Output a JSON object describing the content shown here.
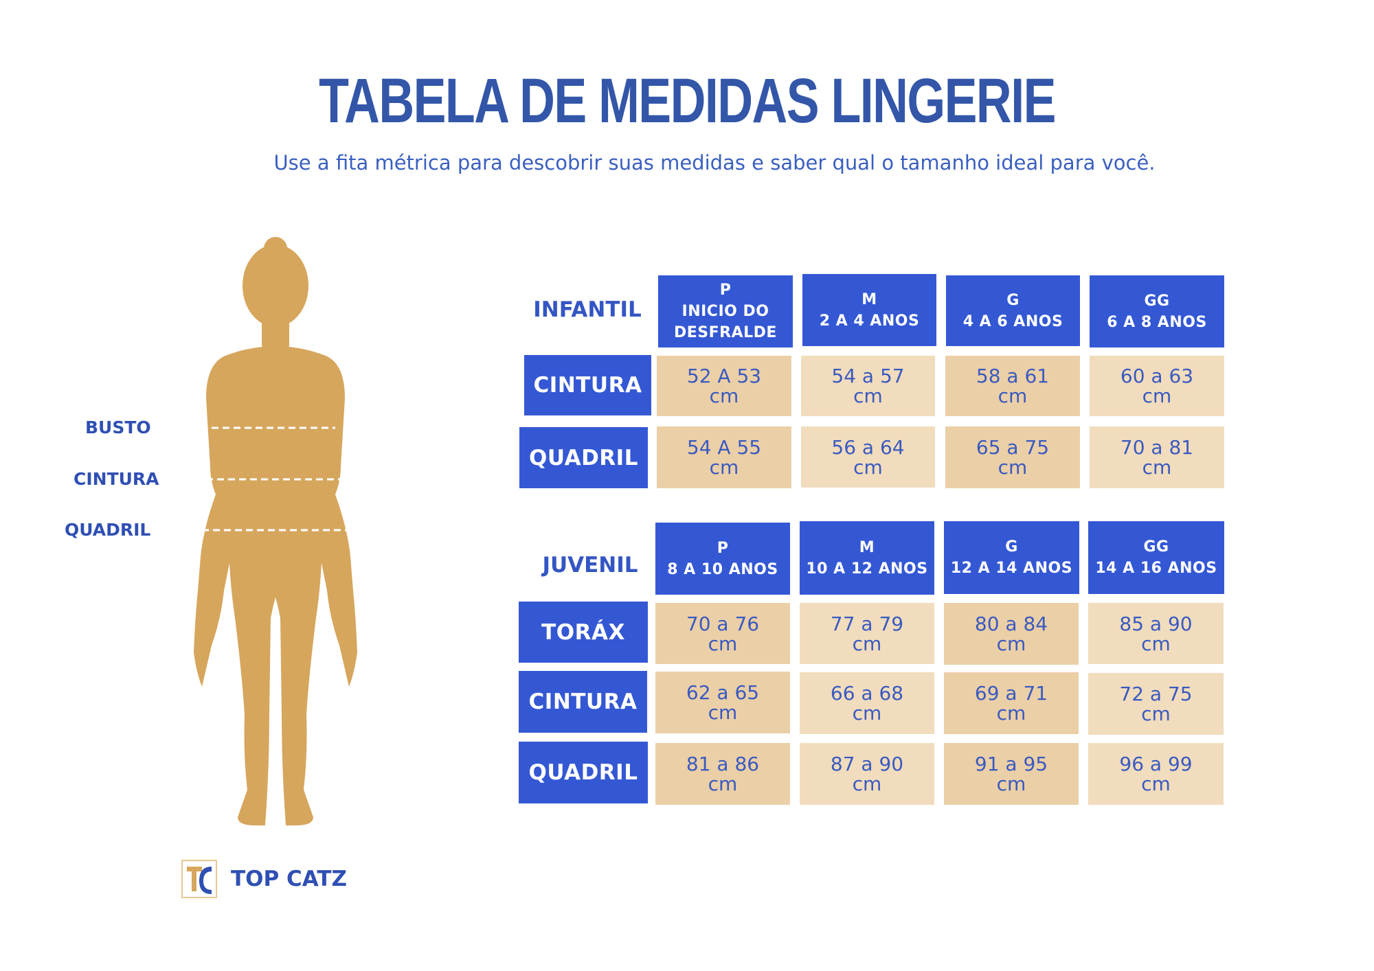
{
  "title": "TABELA DE MEDIDAS LINGERIE",
  "subtitle": "Use a fita métrica para descobrir suas medidas e saber qual o tamanho ideal para você.",
  "body_labels": [
    "BUSTO",
    "CINTURA",
    "QUADRIL"
  ],
  "colors": {
    "blue": "#3458d4",
    "text_blue": "#3356a8",
    "skin": "#d6a65d",
    "cell_dark": "#ebcfa7",
    "cell_light": "#f1dcbd"
  },
  "infantil": {
    "label": "INFANTIL",
    "headers": [
      [
        "P",
        "INICIO DO",
        "DESFRALDE"
      ],
      [
        "M",
        "2 A 4 ANOS"
      ],
      [
        "G",
        "4 A 6 ANOS"
      ],
      [
        "GG",
        "6 A 8 ANOS"
      ]
    ],
    "rows": [
      {
        "label": "CINTURA",
        "cells": [
          [
            "52 A 53",
            "cm"
          ],
          [
            "54 a 57",
            "cm"
          ],
          [
            "58 a 61",
            "cm"
          ],
          [
            "60 a 63",
            "cm"
          ]
        ]
      },
      {
        "label": "QUADRIL",
        "cells": [
          [
            "54 A 55",
            "cm"
          ],
          [
            "56 a 64",
            "cm"
          ],
          [
            "65 a 75",
            "cm"
          ],
          [
            "70 a 81",
            "cm"
          ]
        ]
      }
    ]
  },
  "juvenil": {
    "label": "JUVENIL",
    "headers": [
      [
        "P",
        "8 A 10 ANOS"
      ],
      [
        "M",
        "10 A 12 ANOS"
      ],
      [
        "G",
        "12 A 14 ANOS"
      ],
      [
        "GG",
        "14 A 16 ANOS"
      ]
    ],
    "rows": [
      {
        "label": "TORÁX",
        "cells": [
          [
            "70 a 76",
            "cm"
          ],
          [
            "77 a 79",
            "cm"
          ],
          [
            "80 a 84",
            "cm"
          ],
          [
            "85 a 90",
            "cm"
          ]
        ]
      },
      {
        "label": "CINTURA",
        "cells": [
          [
            "62 a 65",
            "cm"
          ],
          [
            "66 a 68",
            "cm"
          ],
          [
            "69 a 71",
            "cm"
          ],
          [
            "72 a 75",
            "cm"
          ]
        ]
      },
      {
        "label": "QUADRIL",
        "cells": [
          [
            "81 a 86",
            "cm"
          ],
          [
            "87 a 90",
            "cm"
          ],
          [
            "91 a 95",
            "cm"
          ],
          [
            "96 a 99",
            "cm"
          ]
        ]
      }
    ]
  },
  "logo": {
    "icon": "tc-monogram-icon",
    "text": "TOP CATZ"
  }
}
